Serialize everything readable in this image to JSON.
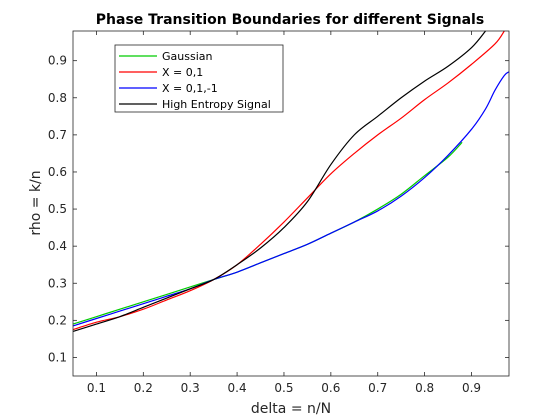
{
  "chart_data": {
    "type": "line",
    "title": "Phase Transition Boundaries for different Signals",
    "xlabel": "delta = n/N",
    "ylabel": "rho = k/n",
    "xlim": [
      0.05,
      0.98
    ],
    "ylim": [
      0.05,
      0.98
    ],
    "x_ticks": [
      "0.1",
      "0.2",
      "0.3",
      "0.4",
      "0.5",
      "0.6",
      "0.7",
      "0.8",
      "0.9"
    ],
    "y_ticks": [
      "0.1",
      "0.2",
      "0.3",
      "0.4",
      "0.5",
      "0.6",
      "0.7",
      "0.8",
      "0.9"
    ],
    "grid": false,
    "legend_position": "top-left",
    "series": [
      {
        "name": "Gaussian",
        "color": "#00cc00",
        "x": [
          0.05,
          0.1,
          0.15,
          0.2,
          0.25,
          0.3,
          0.35,
          0.4,
          0.45,
          0.5,
          0.55,
          0.6,
          0.65,
          0.7,
          0.75,
          0.8,
          0.85,
          0.88
        ],
        "y": [
          0.19,
          0.21,
          0.23,
          0.25,
          0.27,
          0.29,
          0.31,
          0.33,
          0.355,
          0.38,
          0.405,
          0.435,
          0.465,
          0.5,
          0.54,
          0.59,
          0.64,
          0.68
        ]
      },
      {
        "name": "X = 0,1",
        "color": "#ff0000",
        "x": [
          0.05,
          0.1,
          0.15,
          0.2,
          0.25,
          0.3,
          0.35,
          0.4,
          0.45,
          0.5,
          0.55,
          0.6,
          0.65,
          0.7,
          0.75,
          0.8,
          0.85,
          0.9,
          0.95,
          0.97
        ],
        "y": [
          0.175,
          0.195,
          0.21,
          0.23,
          0.255,
          0.28,
          0.31,
          0.35,
          0.405,
          0.465,
          0.53,
          0.595,
          0.65,
          0.7,
          0.745,
          0.795,
          0.84,
          0.89,
          0.945,
          0.98
        ]
      },
      {
        "name": "X = 0,1,-1",
        "color": "#0000ff",
        "x": [
          0.05,
          0.1,
          0.15,
          0.2,
          0.25,
          0.3,
          0.35,
          0.4,
          0.45,
          0.5,
          0.55,
          0.6,
          0.65,
          0.7,
          0.75,
          0.8,
          0.85,
          0.9,
          0.93,
          0.95,
          0.97,
          0.98
        ],
        "y": [
          0.185,
          0.205,
          0.225,
          0.245,
          0.265,
          0.285,
          0.31,
          0.33,
          0.355,
          0.38,
          0.405,
          0.435,
          0.465,
          0.495,
          0.535,
          0.585,
          0.645,
          0.715,
          0.77,
          0.82,
          0.86,
          0.87
        ]
      },
      {
        "name": "High Entropy Signal",
        "color": "#000000",
        "x": [
          0.05,
          0.1,
          0.15,
          0.2,
          0.25,
          0.3,
          0.35,
          0.4,
          0.45,
          0.5,
          0.55,
          0.6,
          0.65,
          0.7,
          0.75,
          0.8,
          0.85,
          0.9,
          0.93
        ],
        "y": [
          0.17,
          0.19,
          0.21,
          0.235,
          0.26,
          0.285,
          0.31,
          0.35,
          0.395,
          0.45,
          0.52,
          0.62,
          0.7,
          0.75,
          0.8,
          0.845,
          0.885,
          0.935,
          0.98
        ]
      }
    ]
  }
}
